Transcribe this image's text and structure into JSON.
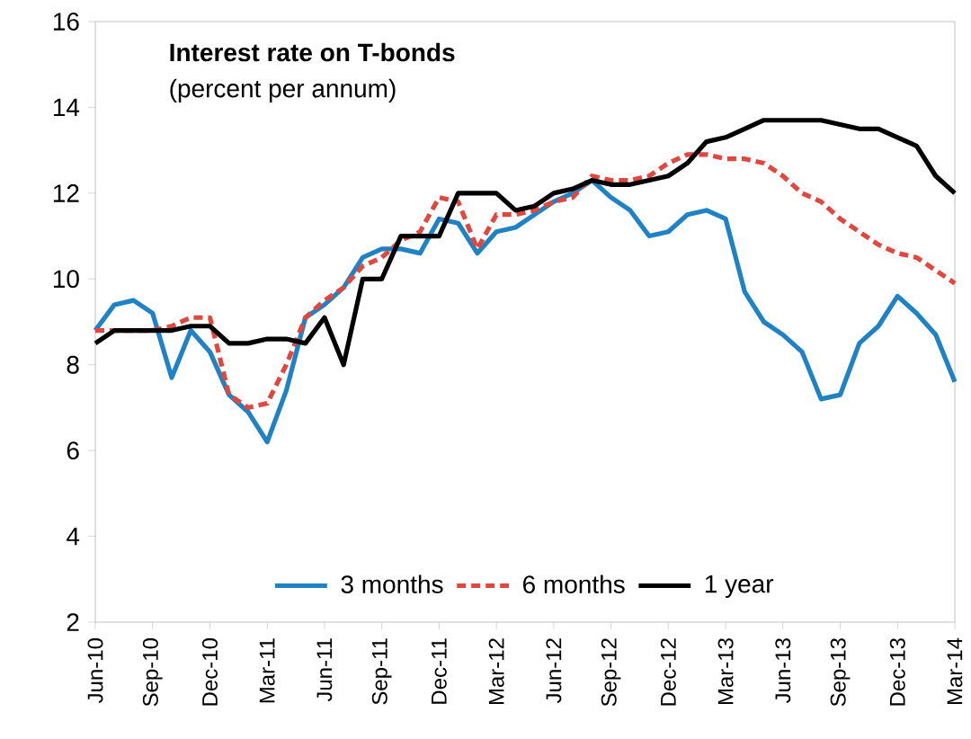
{
  "chart_data": {
    "type": "line",
    "title": "Interest rate on T-bonds",
    "subtitle": "(percent per annum)",
    "x": [
      "2010-06",
      "2010-07",
      "2010-08",
      "2010-09",
      "2010-10",
      "2010-11",
      "2010-12",
      "2011-01",
      "2011-02",
      "2011-03",
      "2011-04",
      "2011-05",
      "2011-06",
      "2011-07",
      "2011-08",
      "2011-09",
      "2011-10",
      "2011-11",
      "2011-12",
      "2012-01",
      "2012-02",
      "2012-03",
      "2012-04",
      "2012-05",
      "2012-06",
      "2012-07",
      "2012-08",
      "2012-09",
      "2012-10",
      "2012-11",
      "2012-12",
      "2013-01",
      "2013-02",
      "2013-03",
      "2013-04",
      "2013-05",
      "2013-06",
      "2013-07",
      "2013-08",
      "2013-09",
      "2013-10",
      "2013-11",
      "2013-12",
      "2014-01",
      "2014-02",
      "2014-03"
    ],
    "series": [
      {
        "name": "3 months",
        "color": "#1f82c4",
        "line_style": "solid",
        "values": [
          8.8,
          9.4,
          9.5,
          9.2,
          7.7,
          8.8,
          8.3,
          7.3,
          6.9,
          6.2,
          7.4,
          9.1,
          9.4,
          9.8,
          10.5,
          10.7,
          10.7,
          10.6,
          11.4,
          11.3,
          10.6,
          11.1,
          11.2,
          11.5,
          11.8,
          12.0,
          12.3,
          11.9,
          11.6,
          11.0,
          11.1,
          11.5,
          11.6,
          11.4,
          9.7,
          9.0,
          8.7,
          8.3,
          7.2,
          7.3,
          8.5,
          8.9,
          9.6,
          9.2,
          8.7,
          7.6
        ]
      },
      {
        "name": "6 months",
        "color": "#e0473f",
        "line_style": "dashed",
        "values": [
          8.8,
          8.8,
          8.8,
          8.8,
          8.9,
          9.1,
          9.1,
          7.3,
          7.0,
          7.1,
          8.0,
          9.1,
          9.5,
          9.8,
          10.3,
          10.5,
          10.9,
          11.1,
          11.9,
          11.8,
          10.7,
          11.5,
          11.5,
          11.6,
          11.8,
          11.9,
          12.4,
          12.3,
          12.3,
          12.4,
          12.7,
          12.9,
          12.9,
          12.8,
          12.8,
          12.7,
          12.4,
          12.0,
          11.8,
          11.4,
          11.1,
          10.8,
          10.6,
          10.5,
          10.2,
          9.9
        ]
      },
      {
        "name": "1 year",
        "color": "#000000",
        "line_style": "solid",
        "values": [
          8.5,
          8.8,
          8.8,
          8.8,
          8.8,
          8.9,
          8.9,
          8.5,
          8.5,
          8.6,
          8.6,
          8.5,
          9.1,
          8.0,
          10.0,
          10.0,
          11.0,
          11.0,
          11.0,
          12.0,
          12.0,
          12.0,
          11.6,
          11.7,
          12.0,
          12.1,
          12.3,
          12.2,
          12.2,
          12.3,
          12.4,
          12.7,
          13.2,
          13.3,
          13.5,
          13.7,
          13.7,
          13.7,
          13.7,
          13.6,
          13.5,
          13.5,
          13.3,
          13.1,
          12.4,
          12.0
        ]
      }
    ],
    "xlim": [
      "2010-06",
      "2014-03"
    ],
    "xticks": [
      {
        "value": "2010-06",
        "label": "Jun-10"
      },
      {
        "value": "2010-09",
        "label": "Sep-10"
      },
      {
        "value": "2010-12",
        "label": "Dec-10"
      },
      {
        "value": "2011-03",
        "label": "Mar-11"
      },
      {
        "value": "2011-06",
        "label": "Jun-11"
      },
      {
        "value": "2011-09",
        "label": "Sep-11"
      },
      {
        "value": "2011-12",
        "label": "Dec-11"
      },
      {
        "value": "2012-03",
        "label": "Mar-12"
      },
      {
        "value": "2012-06",
        "label": "Jun-12"
      },
      {
        "value": "2012-09",
        "label": "Sep-12"
      },
      {
        "value": "2012-12",
        "label": "Dec-12"
      },
      {
        "value": "2013-03",
        "label": "Mar-13"
      },
      {
        "value": "2013-06",
        "label": "Jun-13"
      },
      {
        "value": "2013-09",
        "label": "Sep-13"
      },
      {
        "value": "2013-12",
        "label": "Dec-13"
      },
      {
        "value": "2014-03",
        "label": "Mar-14"
      }
    ],
    "ylim": [
      2,
      16
    ],
    "yticks": [
      2,
      4,
      6,
      8,
      10,
      12,
      14,
      16
    ],
    "grid": false,
    "legend": "bottom",
    "marker": "none"
  }
}
